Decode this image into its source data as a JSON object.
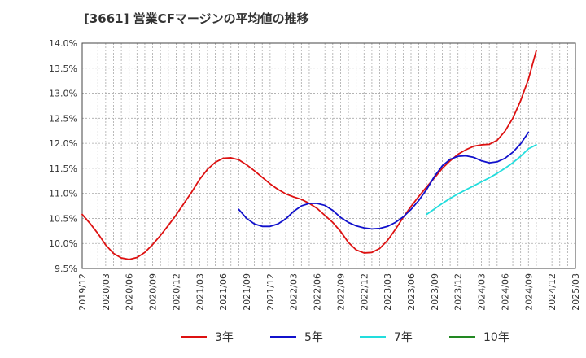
{
  "chart_data": {
    "type": "line",
    "title": "[3661]  営業CFマージンの平均値の推移",
    "xlabel": "",
    "ylabel": "",
    "x_ticks": [
      "2019/12",
      "2020/03",
      "2020/06",
      "2020/09",
      "2020/12",
      "2021/03",
      "2021/06",
      "2021/09",
      "2021/12",
      "2022/03",
      "2022/06",
      "2022/09",
      "2022/12",
      "2023/03",
      "2023/06",
      "2023/09",
      "2023/12",
      "2024/03",
      "2024/06",
      "2024/09",
      "2024/12",
      "2025/03"
    ],
    "y_ticks": [
      "9.5%",
      "10.0%",
      "10.5%",
      "11.0%",
      "11.5%",
      "12.0%",
      "12.5%",
      "13.0%",
      "13.5%",
      "14.0%"
    ],
    "ylim": [
      9.5,
      14.0
    ],
    "grid": true,
    "legend_position": "bottom",
    "series": [
      {
        "name": "3年",
        "color": "#dd1111",
        "start": "2019/12",
        "values": [
          10.58,
          10.4,
          10.2,
          9.97,
          9.8,
          9.71,
          9.68,
          9.72,
          9.82,
          9.98,
          10.16,
          10.36,
          10.57,
          10.8,
          11.03,
          11.28,
          11.48,
          11.62,
          11.7,
          11.71,
          11.67,
          11.57,
          11.45,
          11.32,
          11.19,
          11.08,
          10.99,
          10.93,
          10.88,
          10.8,
          10.7,
          10.56,
          10.42,
          10.24,
          10.02,
          9.87,
          9.81,
          9.82,
          9.9,
          10.06,
          10.28,
          10.52,
          10.74,
          10.94,
          11.13,
          11.31,
          11.5,
          11.65,
          11.78,
          11.87,
          11.94,
          11.97,
          11.98,
          12.06,
          12.24,
          12.5,
          12.85,
          13.28,
          13.85
        ]
      },
      {
        "name": "5年",
        "color": "#1111cc",
        "start": "2021/08",
        "values": [
          10.68,
          10.5,
          10.39,
          10.34,
          10.34,
          10.39,
          10.49,
          10.64,
          10.75,
          10.8,
          10.8,
          10.76,
          10.66,
          10.52,
          10.42,
          10.35,
          10.31,
          10.29,
          10.3,
          10.34,
          10.42,
          10.53,
          10.68,
          10.86,
          11.08,
          11.34,
          11.55,
          11.68,
          11.74,
          11.75,
          11.72,
          11.65,
          11.61,
          11.63,
          11.7,
          11.82,
          11.99,
          12.22
        ]
      },
      {
        "name": "7年",
        "color": "#22dddd",
        "start": "2023/08",
        "values": [
          10.58,
          10.69,
          10.8,
          10.9,
          10.99,
          11.07,
          11.15,
          11.23,
          11.31,
          11.4,
          11.5,
          11.61,
          11.74,
          11.89,
          11.97
        ]
      },
      {
        "name": "10年",
        "color": "#228822",
        "start": "",
        "values": []
      }
    ]
  }
}
